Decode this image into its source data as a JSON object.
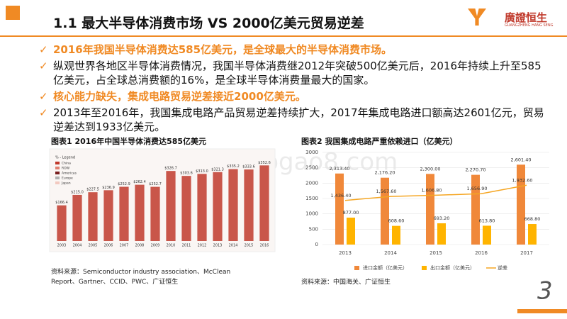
{
  "header": {
    "title": "1.1 最大半导体消费市场 VS 2000亿美元贸易逆差",
    "logo": "廣證恒生",
    "logo_sub": "GUANGZHENG HANG SENG"
  },
  "bullets": [
    {
      "text": "2016年我国半导体消费达585亿美元，是全球最大的半导体消费市场。",
      "highlight": true
    },
    {
      "text": "纵观世界各地区半导体消费情况，我国半导体消费继2012年突破500亿美元后，2016年持续上升至585亿美元，占全球总消费额的16%，是全球半导体消费量最大的国家。",
      "highlight": false
    },
    {
      "text": "核心能力缺失，集成电路贸易逆差接近2000亿美元。",
      "highlight": true
    },
    {
      "text": "2013年至2016年，我国集成电路产品贸易逆差持续扩大，2017年集成电路进口额高达2601亿元，贸易逆差达到1933亿美元。",
      "highlight": false
    }
  ],
  "watermark": "www.baogao8.com",
  "page_number": "3",
  "chart_data": [
    {
      "type": "bar",
      "title": "图表1 2016年中国半导体消费达585亿美元",
      "source": "资料来源：Semiconductor industry association、McClean Report、Gartner、CCID、PWC、广证恒生",
      "legend_title": "% - Legend",
      "legend": [
        {
          "name": "China",
          "color": "#c0392b"
        },
        {
          "name": "ROW",
          "color": "#e08070"
        },
        {
          "name": "Americas",
          "color": "#7a1f1f"
        },
        {
          "name": "Europe",
          "color": "#b0b0b0"
        },
        {
          "name": "Japan",
          "color": "#f2c9c0"
        }
      ],
      "categories": [
        "2003",
        "2004",
        "2005",
        "2006",
        "2007",
        "2008",
        "2009",
        "2010",
        "2011",
        "2012",
        "2013",
        "2014",
        "2015",
        "2016"
      ],
      "values": [
        166.4,
        215.0,
        227.5,
        236.9,
        252.9,
        262.4,
        252.7,
        326.7,
        303.6,
        313.0,
        321.3,
        335.2,
        333.6,
        352.6
      ],
      "value_labels": [
        "$166.4",
        "$215.0",
        "$227.5",
        "$236.9",
        "$252.9",
        "$262.4",
        "$252.7",
        "$326.7",
        "$303.6",
        "$313.0",
        "$321.3",
        "$335.2",
        "$333.6",
        "$352.6"
      ],
      "color": "#c0392b"
    },
    {
      "type": "bar-line",
      "title": "图表2 我国集成电路严重依赖进口（亿美元）",
      "source": "资料来源：中国海关、广证恒生",
      "categories": [
        "2013",
        "2014",
        "2015",
        "2016",
        "2017"
      ],
      "ylim": [
        0,
        3000
      ],
      "yticks": [
        0,
        500,
        1000,
        1500,
        2000,
        2500,
        3000
      ],
      "series": [
        {
          "name": "进口金额（亿美元）",
          "color": "#f0883a",
          "kind": "bar",
          "values": [
            2313.4,
            2176.2,
            2300.0,
            2270.7,
            2601.4
          ],
          "value_labels": [
            "2,313.40",
            "2,176.20",
            "2,300.00",
            "2,270.70",
            "2,601.40"
          ]
        },
        {
          "name": "出口金额（亿美元）",
          "color": "#ffb400",
          "kind": "bar",
          "values": [
            877.0,
            608.6,
            693.2,
            613.8,
            668.8
          ],
          "value_labels": [
            "877.00",
            "608.60",
            "693.20",
            "613.80",
            "668.80"
          ]
        },
        {
          "name": "逆差",
          "color": "#f5a623",
          "kind": "line",
          "values": [
            1436.4,
            1567.6,
            1606.8,
            1656.9,
            1932.6
          ],
          "value_labels": [
            "1,436.40",
            "1,567.60",
            "1,606.80",
            "1,656.90",
            "1,932.60"
          ]
        }
      ]
    }
  ]
}
